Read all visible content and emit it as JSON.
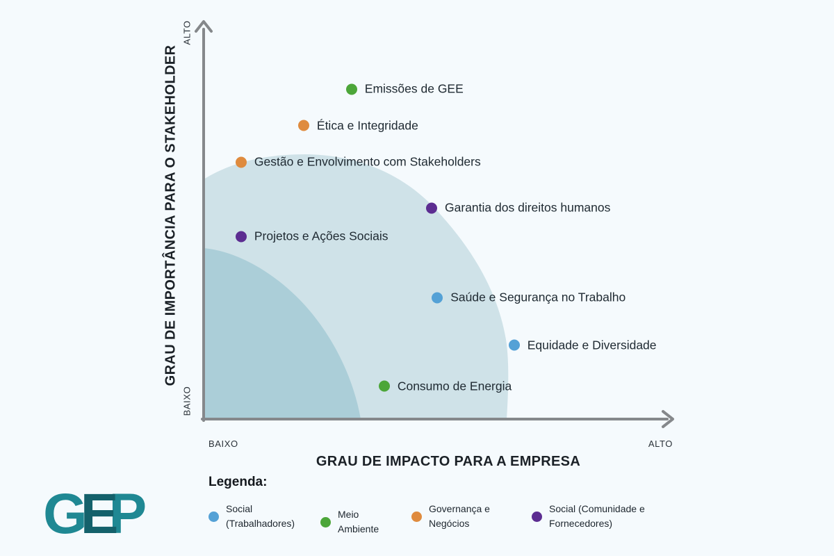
{
  "page": {
    "background_color": "#f5fafd",
    "text_color": "#202b33"
  },
  "y_axis": {
    "title": "GRAU DE IMPORTÂNCIA PARA O STAKEHOLDER",
    "top_label": "ALTO",
    "bottom_label": "BAIXO",
    "line_color": "#85888b"
  },
  "x_axis": {
    "title": "GRAU DE IMPACTO PARA A EMPRESA",
    "left_label": "BAIXO",
    "right_label": "ALTO",
    "line_color": "#85888b"
  },
  "legend": {
    "title": "Legenda:",
    "items": [
      {
        "name": "social-trabalhadores",
        "lines": [
          "Social",
          "(Trabalhadores)"
        ],
        "color": "#54a1d6"
      },
      {
        "name": "meio-ambiente",
        "lines": [
          "Meio",
          "Ambiente"
        ],
        "color": "#4ca639"
      },
      {
        "name": "governanca-e-negocios",
        "lines": [
          "Governança e",
          "Negócios"
        ],
        "color": "#df8b3e"
      },
      {
        "name": "social-comunidade-fornecedores",
        "lines": [
          "Social (Comunidade e",
          "Fornecedores)"
        ],
        "color": "#5c2d91"
      }
    ]
  },
  "logo": {
    "letters": [
      {
        "char": "G",
        "color": "#1f8893"
      },
      {
        "char": "E",
        "color": "#14616b"
      },
      {
        "char": "P",
        "color": "#1f8893"
      }
    ]
  },
  "chart_data": {
    "type": "scatter",
    "xlabel": "GRAU DE IMPACTO PARA A EMPRESA",
    "ylabel": "GRAU DE IMPORTÂNCIA PARA O STAKEHOLDER",
    "x_range_labels": [
      "BAIXO",
      "ALTO"
    ],
    "y_range_labels": [
      "BAIXO",
      "ALTO"
    ],
    "xlim": [
      0,
      1
    ],
    "ylim": [
      0,
      1
    ],
    "legend_position": "bottom",
    "grid": false,
    "category_colors": {
      "Social (Trabalhadores)": "#54a1d6",
      "Meio Ambiente": "#4ca639",
      "Governança e Negócios": "#df8b3e",
      "Social (Comunidade e Fornecedores)": "#5c2d91"
    },
    "zones": [
      {
        "name": "outer-priority-band",
        "color": "#cfe2e8"
      },
      {
        "name": "inner-priority-band",
        "color": "#abced8"
      }
    ],
    "points": [
      {
        "label": "Emissões de GEE",
        "category": "Meio Ambiente",
        "x": 0.312,
        "y": 0.836
      },
      {
        "label": "Ética e Integridade",
        "category": "Governança e Negócios",
        "x": 0.211,
        "y": 0.743
      },
      {
        "label": "Gestão e Envolvimento com Stakeholders",
        "category": "Governança e Negócios",
        "x": 0.079,
        "y": 0.651
      },
      {
        "label": "Garantia dos direitos humanos",
        "category": "Social (Comunidade e Fornecedores)",
        "x": 0.481,
        "y": 0.535
      },
      {
        "label": "Projetos e Ações Sociais",
        "category": "Social (Comunidade e Fornecedores)",
        "x": 0.079,
        "y": 0.463
      },
      {
        "label": "Saúde e Segurança no Trabalho",
        "category": "Social (Trabalhadores)",
        "x": 0.493,
        "y": 0.308
      },
      {
        "label": "Equidade e Diversidade",
        "category": "Social (Trabalhadores)",
        "x": 0.655,
        "y": 0.187
      },
      {
        "label": "Consumo de Energia",
        "category": "Meio Ambiente",
        "x": 0.381,
        "y": 0.083
      }
    ]
  }
}
